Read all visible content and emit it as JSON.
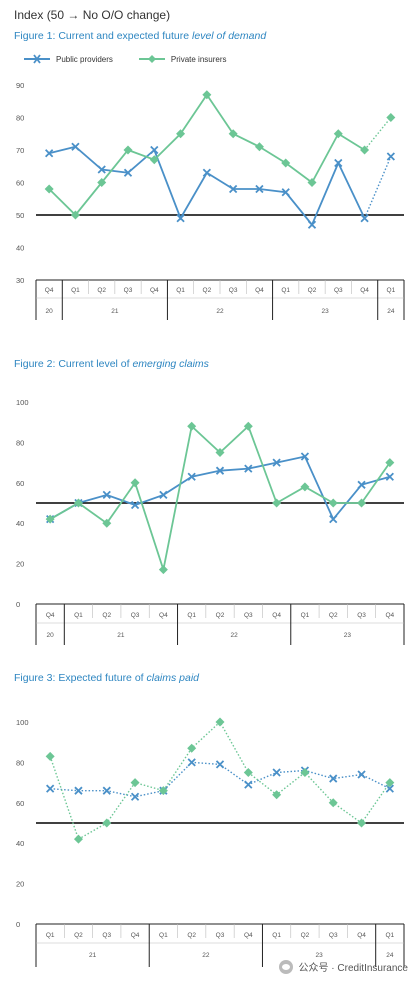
{
  "header": "Index (50 → No O/O change)",
  "legend": {
    "public": "Public providers",
    "private": "Private insurers"
  },
  "colors": {
    "public": "#4a90c8",
    "private": "#6cc695",
    "title": "#2e86c1",
    "refline": "#000000"
  },
  "watermark": "公众号 · CreditInsurance",
  "chart_data": [
    {
      "type": "line",
      "title_plain": "Figure 1: Current and expected future ",
      "title_italic": "level of demand",
      "ylim": [
        30,
        90
      ],
      "yticks": [
        30,
        40,
        50,
        60,
        70,
        80,
        90
      ],
      "reference_line": 50,
      "categories": [
        "Q4 20",
        "Q1 21",
        "Q2 21",
        "Q3 21",
        "Q4 21",
        "Q1 22",
        "Q2 22",
        "Q3 22",
        "Q4 22",
        "Q1 23",
        "Q2 23",
        "Q3 23",
        "Q4 23",
        "Q1 24"
      ],
      "quarters": [
        "Q4",
        "Q1",
        "Q2",
        "Q3",
        "Q4",
        "Q1",
        "Q2",
        "Q3",
        "Q4",
        "Q1",
        "Q2",
        "Q3",
        "Q4",
        "Q1"
      ],
      "years": [
        {
          "label": "20",
          "span": 1
        },
        {
          "label": "21",
          "span": 4
        },
        {
          "label": "22",
          "span": 4
        },
        {
          "label": "23",
          "span": 4
        },
        {
          "label": "24",
          "span": 1
        }
      ],
      "dotted_from": 12,
      "series": [
        {
          "name": "Public providers",
          "values": [
            69,
            71,
            64,
            63,
            70,
            49,
            63,
            58,
            58,
            57,
            47,
            66,
            49,
            68
          ]
        },
        {
          "name": "Private insurers",
          "values": [
            58,
            50,
            60,
            70,
            67,
            75,
            87,
            75,
            71,
            66,
            60,
            75,
            70,
            80
          ]
        }
      ]
    },
    {
      "type": "line",
      "title_plain": "Figure 2: Current level of ",
      "title_italic": "emerging claims",
      "ylim": [
        0,
        100
      ],
      "yticks": [
        0,
        20,
        40,
        60,
        80,
        100
      ],
      "reference_line": 50,
      "categories": [
        "Q4 20",
        "Q1 21",
        "Q2 21",
        "Q3 21",
        "Q4 21",
        "Q1 22",
        "Q2 22",
        "Q3 22",
        "Q4 22",
        "Q1 23",
        "Q2 23",
        "Q3 23",
        "Q4 23"
      ],
      "quarters": [
        "Q4",
        "Q1",
        "Q2",
        "Q3",
        "Q4",
        "Q1",
        "Q2",
        "Q3",
        "Q4",
        "Q1",
        "Q2",
        "Q3",
        "Q4"
      ],
      "years": [
        {
          "label": "20",
          "span": 1
        },
        {
          "label": "21",
          "span": 4
        },
        {
          "label": "22",
          "span": 4
        },
        {
          "label": "23",
          "span": 4
        }
      ],
      "dotted_from": null,
      "series": [
        {
          "name": "Public providers",
          "values": [
            42,
            50,
            54,
            49,
            54,
            63,
            66,
            67,
            70,
            73,
            42,
            59,
            63
          ]
        },
        {
          "name": "Private insurers",
          "values": [
            42,
            50,
            40,
            60,
            17,
            88,
            75,
            88,
            50,
            58,
            50,
            50,
            70
          ]
        }
      ]
    },
    {
      "type": "line",
      "title_plain": "Figure 3: Expected future of ",
      "title_italic": "claims paid",
      "ylim": [
        0,
        100
      ],
      "yticks": [
        0,
        20,
        40,
        60,
        80,
        100
      ],
      "reference_line": 50,
      "categories": [
        "Q1 21",
        "Q2 21",
        "Q3 21",
        "Q4 21",
        "Q1 22",
        "Q2 22",
        "Q3 22",
        "Q4 22",
        "Q1 23",
        "Q2 23",
        "Q3 23",
        "Q4 23",
        "Q1 24"
      ],
      "quarters": [
        "Q1",
        "Q2",
        "Q3",
        "Q4",
        "Q1",
        "Q2",
        "Q3",
        "Q4",
        "Q1",
        "Q2",
        "Q3",
        "Q4",
        "Q1"
      ],
      "years": [
        {
          "label": "21",
          "span": 4
        },
        {
          "label": "22",
          "span": 4
        },
        {
          "label": "23",
          "span": 4
        },
        {
          "label": "24",
          "span": 1
        }
      ],
      "dotted_from": 0,
      "series": [
        {
          "name": "Public providers",
          "values": [
            67,
            66,
            66,
            63,
            66,
            80,
            79,
            69,
            75,
            76,
            72,
            74,
            67
          ]
        },
        {
          "name": "Private insurers",
          "values": [
            83,
            42,
            50,
            70,
            66,
            87,
            100,
            75,
            64,
            75,
            60,
            50,
            70
          ]
        }
      ]
    }
  ]
}
